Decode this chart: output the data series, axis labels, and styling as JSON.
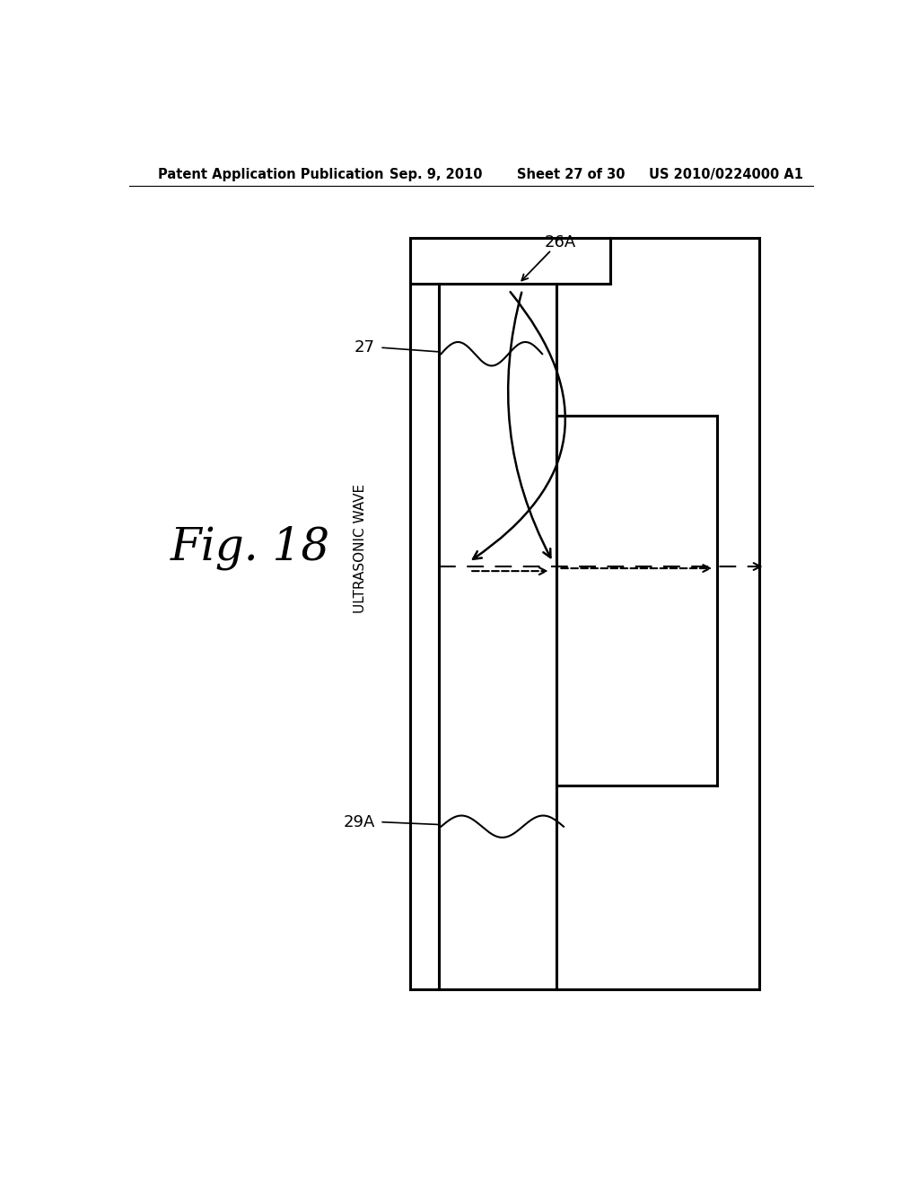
{
  "bg_color": "#ffffff",
  "header_text": "Patent Application Publication",
  "header_date": "Sep. 9, 2010",
  "header_sheet": "Sheet 27 of 30",
  "header_patent": "US 2010/0224000 A1",
  "fig_label": "Fig. 18",
  "label_26A": "26A",
  "label_27": "27",
  "label_29A": "29A",
  "label_ultrasonic": "ULTRASONIC WAVE",
  "line_color": "#000000",
  "lw_main": 2.2,
  "lw_arrow": 1.8
}
